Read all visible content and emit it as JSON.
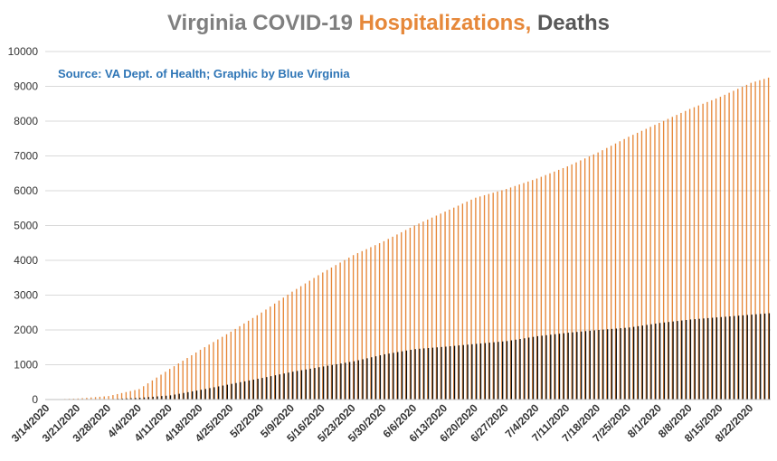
{
  "colors": {
    "title_gray": "#7f7f7f",
    "hospitalizations": "#e6883a",
    "deaths": "#0d0d0d",
    "subtitle": "#2e75b6",
    "grid": "#d9d9d9"
  },
  "chart_data": {
    "type": "bar",
    "title": {
      "part1": "Virginia COVID-19 ",
      "part2": "Hospitalizations,",
      "part3": " Deaths"
    },
    "subtitle": "Source: VA Dept. of Health; Graphic by Blue Virginia",
    "xlabel": "",
    "ylabel": "",
    "ylim": [
      0,
      10000
    ],
    "y_ticks": [
      0,
      1000,
      2000,
      3000,
      4000,
      5000,
      6000,
      7000,
      8000,
      9000,
      10000
    ],
    "grid": true,
    "legend": "none",
    "x_start": "3/14/2020",
    "x_end": "8/26/2020",
    "x_tick_labels": [
      "3/14/2020",
      "3/21/2020",
      "3/28/2020",
      "4/4/2020",
      "4/11/2020",
      "4/18/2020",
      "4/25/2020",
      "5/2/2020",
      "5/9/2020",
      "5/16/2020",
      "5/23/2020",
      "5/30/2020",
      "6/6/2020",
      "6/13/2020",
      "6/20/2020",
      "6/27/2020",
      "7/4/2020",
      "7/11/2020",
      "7/18/2020",
      "7/25/2020",
      "8/1/2020",
      "8/8/2020",
      "8/15/2020",
      "8/22/2020"
    ],
    "series": [
      {
        "key": "hospitalizations",
        "points": [
          {
            "x": "3/14/2020",
            "y": 0
          },
          {
            "x": "3/21/2020",
            "y": 30
          },
          {
            "x": "3/28/2020",
            "y": 100
          },
          {
            "x": "4/4/2020",
            "y": 300
          },
          {
            "x": "4/11/2020",
            "y": 880
          },
          {
            "x": "4/18/2020",
            "y": 1430
          },
          {
            "x": "4/25/2020",
            "y": 1950
          },
          {
            "x": "5/2/2020",
            "y": 2500
          },
          {
            "x": "5/9/2020",
            "y": 3100
          },
          {
            "x": "5/16/2020",
            "y": 3650
          },
          {
            "x": "5/23/2020",
            "y": 4150
          },
          {
            "x": "5/30/2020",
            "y": 4550
          },
          {
            "x": "6/6/2020",
            "y": 5000
          },
          {
            "x": "6/13/2020",
            "y": 5400
          },
          {
            "x": "6/20/2020",
            "y": 5800
          },
          {
            "x": "6/27/2020",
            "y": 6050
          },
          {
            "x": "7/4/2020",
            "y": 6350
          },
          {
            "x": "7/11/2020",
            "y": 6700
          },
          {
            "x": "7/18/2020",
            "y": 7100
          },
          {
            "x": "7/25/2020",
            "y": 7550
          },
          {
            "x": "8/1/2020",
            "y": 7950
          },
          {
            "x": "8/8/2020",
            "y": 8350
          },
          {
            "x": "8/15/2020",
            "y": 8700
          },
          {
            "x": "8/22/2020",
            "y": 9100
          },
          {
            "x": "8/26/2020",
            "y": 9250
          }
        ]
      },
      {
        "key": "deaths",
        "points": [
          {
            "x": "3/14/2020",
            "y": 0
          },
          {
            "x": "3/21/2020",
            "y": 2
          },
          {
            "x": "3/28/2020",
            "y": 10
          },
          {
            "x": "4/4/2020",
            "y": 50
          },
          {
            "x": "4/11/2020",
            "y": 120
          },
          {
            "x": "4/18/2020",
            "y": 280
          },
          {
            "x": "4/25/2020",
            "y": 450
          },
          {
            "x": "5/2/2020",
            "y": 620
          },
          {
            "x": "5/9/2020",
            "y": 800
          },
          {
            "x": "5/16/2020",
            "y": 950
          },
          {
            "x": "5/23/2020",
            "y": 1100
          },
          {
            "x": "5/30/2020",
            "y": 1300
          },
          {
            "x": "6/6/2020",
            "y": 1450
          },
          {
            "x": "6/13/2020",
            "y": 1520
          },
          {
            "x": "6/20/2020",
            "y": 1600
          },
          {
            "x": "6/27/2020",
            "y": 1680
          },
          {
            "x": "7/4/2020",
            "y": 1820
          },
          {
            "x": "7/11/2020",
            "y": 1920
          },
          {
            "x": "7/18/2020",
            "y": 2000
          },
          {
            "x": "7/25/2020",
            "y": 2070
          },
          {
            "x": "8/1/2020",
            "y": 2200
          },
          {
            "x": "8/8/2020",
            "y": 2300
          },
          {
            "x": "8/15/2020",
            "y": 2370
          },
          {
            "x": "8/22/2020",
            "y": 2440
          },
          {
            "x": "8/26/2020",
            "y": 2480
          }
        ]
      }
    ]
  }
}
